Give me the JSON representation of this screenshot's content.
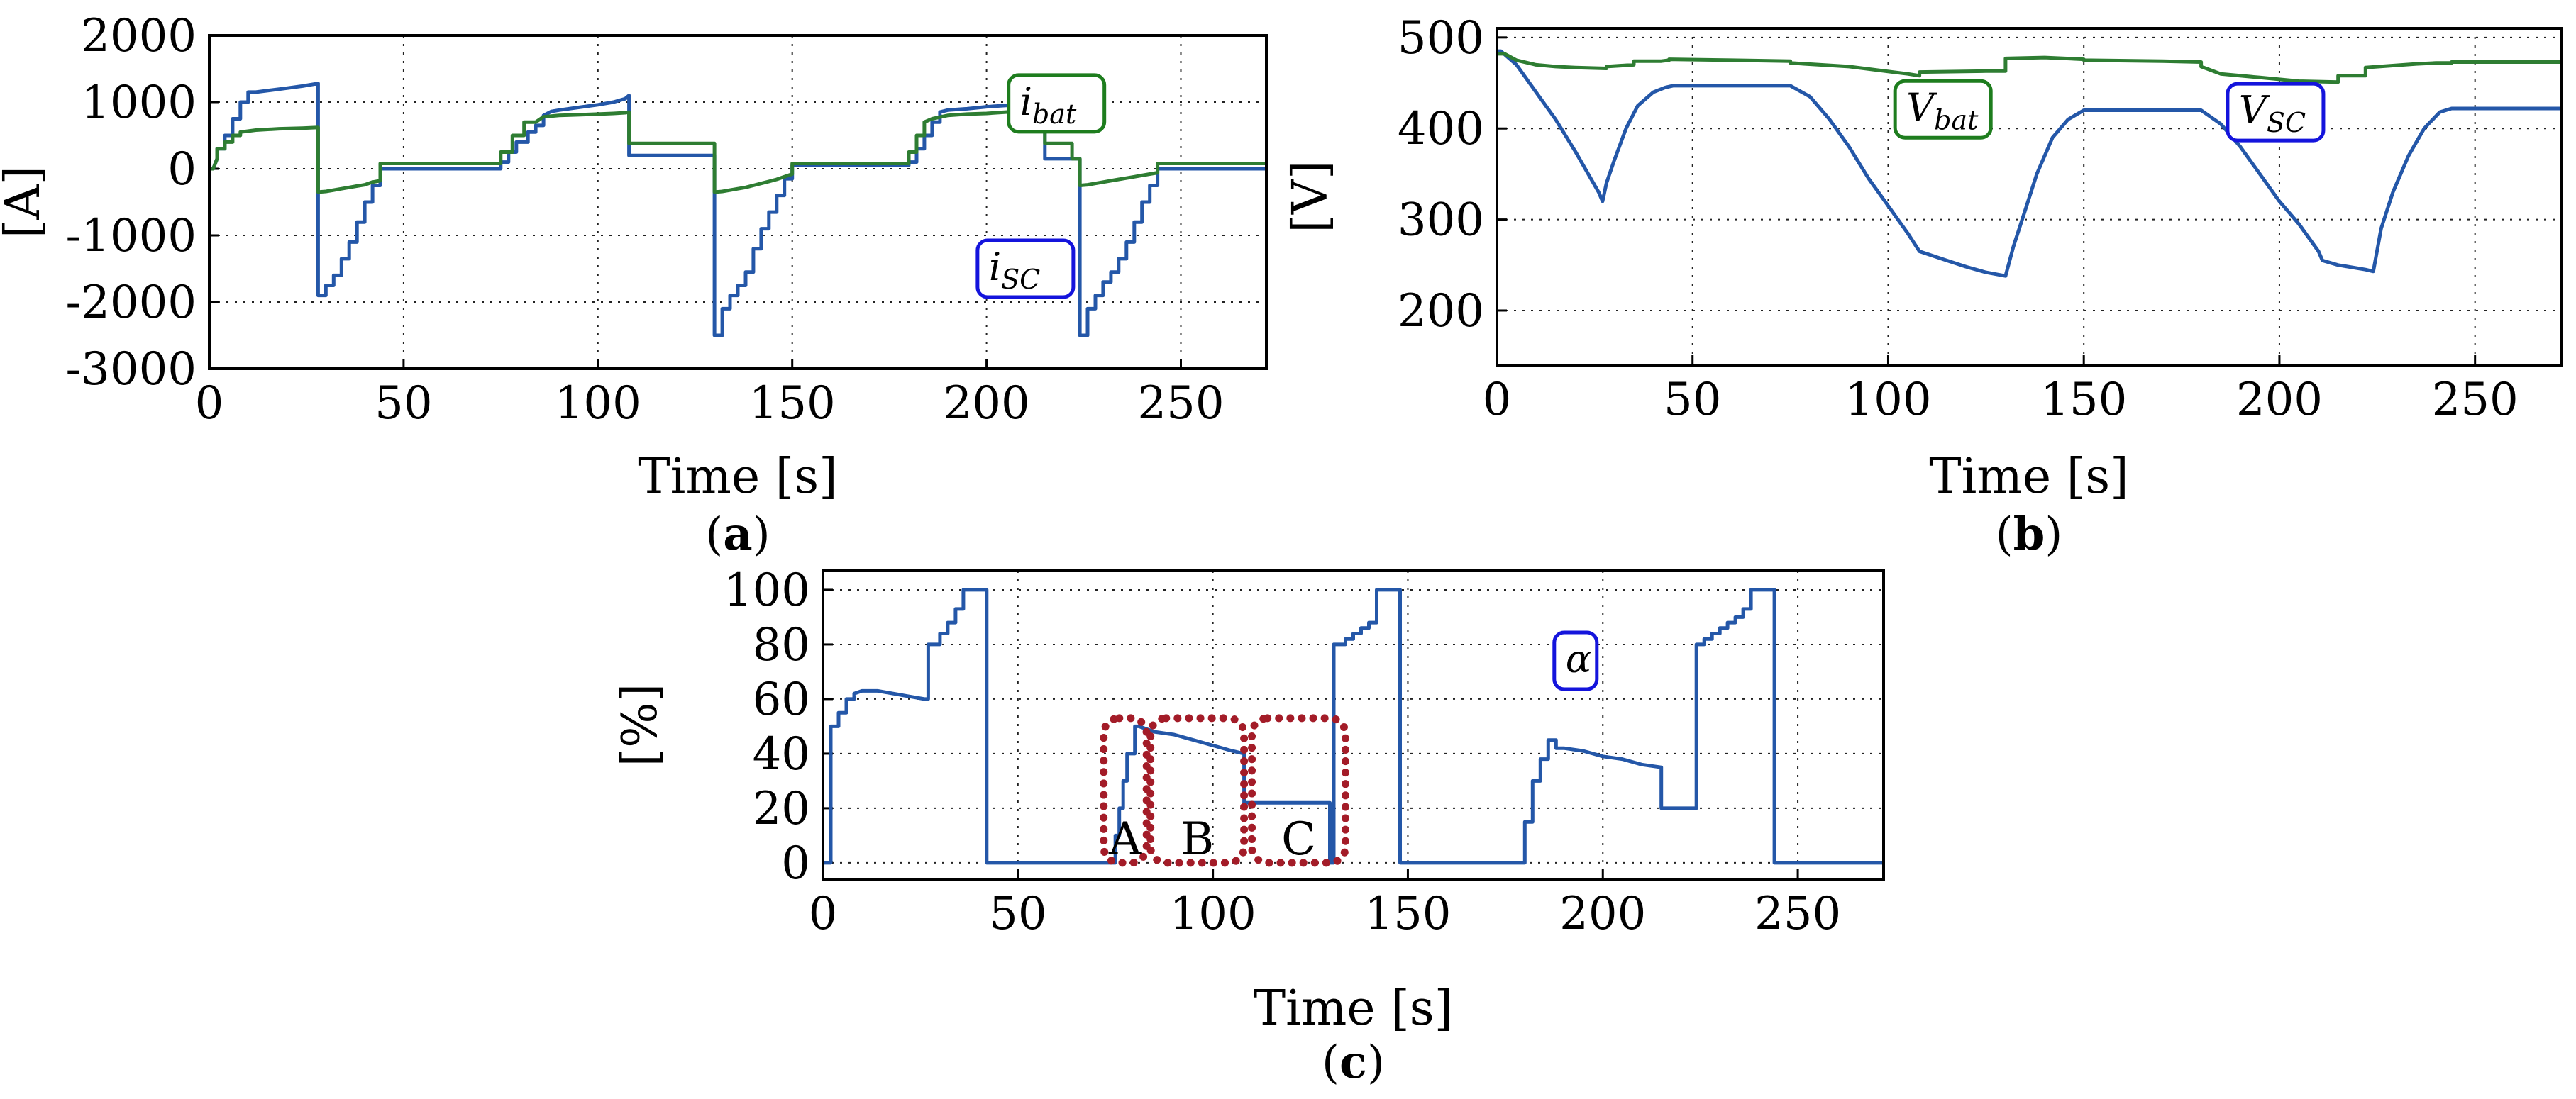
{
  "colors": {
    "blue": "#2457a8",
    "green": "#2e7d32",
    "blue_badge": "#1414dc",
    "green_badge": "#1e7d1e",
    "region": "#a31c28"
  },
  "chart_data": [
    {
      "id": "a",
      "type": "line",
      "panel_label": "(a)",
      "panel_letter": "a",
      "xlabel": "Time [s]",
      "ylabel": "[A]",
      "xlim": [
        0,
        272
      ],
      "ylim": [
        -3000,
        2000
      ],
      "xticks": [
        0,
        50,
        100,
        150,
        200,
        250
      ],
      "yticks": [
        2000,
        1000,
        0,
        -1000,
        -2000,
        -3000
      ],
      "grid": true,
      "series": [
        {
          "name": "i_SC",
          "color": "blue",
          "label_main": "i",
          "label_sub": "SC",
          "label_at": [
            210,
            -1500
          ],
          "x": [
            0,
            1,
            2,
            2,
            4,
            4,
            6,
            6,
            8,
            8,
            10,
            10,
            12,
            16,
            20,
            24,
            28,
            28,
            30,
            30,
            32,
            32,
            34,
            34,
            36,
            36,
            38,
            38,
            40,
            40,
            42,
            42,
            44,
            44,
            75,
            75,
            77,
            77,
            79,
            79,
            82,
            82,
            84,
            84,
            86,
            86,
            88,
            90,
            95,
            100,
            104,
            107,
            108,
            108,
            130,
            130,
            132,
            132,
            134,
            134,
            136,
            136,
            138,
            138,
            140,
            140,
            142,
            142,
            144,
            144,
            146,
            146,
            148,
            148,
            150,
            150,
            180,
            180,
            182,
            182,
            184,
            184,
            186,
            186,
            188,
            188,
            190,
            195,
            200,
            205,
            210,
            214,
            215,
            215,
            224,
            224,
            226,
            226,
            228,
            228,
            230,
            230,
            232,
            232,
            234,
            234,
            236,
            236,
            238,
            238,
            240,
            240,
            242,
            242,
            244,
            244,
            272
          ],
          "y": [
            0,
            0,
            150,
            300,
            300,
            500,
            500,
            750,
            750,
            1000,
            1000,
            1150,
            1150,
            1180,
            1210,
            1240,
            1280,
            -1900,
            -1900,
            -1750,
            -1750,
            -1600,
            -1600,
            -1350,
            -1350,
            -1100,
            -1100,
            -800,
            -800,
            -500,
            -500,
            -250,
            -250,
            0,
            0,
            100,
            100,
            250,
            250,
            400,
            400,
            550,
            550,
            650,
            650,
            800,
            860,
            880,
            920,
            960,
            1000,
            1050,
            1100,
            200,
            200,
            -2500,
            -2500,
            -2100,
            -2100,
            -1900,
            -1900,
            -1750,
            -1750,
            -1550,
            -1550,
            -1200,
            -1200,
            -900,
            -900,
            -650,
            -650,
            -400,
            -400,
            -150,
            -150,
            50,
            50,
            100,
            100,
            300,
            300,
            500,
            500,
            700,
            700,
            850,
            880,
            900,
            930,
            950,
            970,
            990,
            1000,
            150,
            150,
            -2500,
            -2500,
            -2100,
            -2100,
            -1900,
            -1900,
            -1700,
            -1700,
            -1550,
            -1550,
            -1350,
            -1350,
            -1100,
            -1100,
            -800,
            -800,
            -500,
            -500,
            -250,
            -250,
            0,
            0
          ]
        },
        {
          "name": "i_bat",
          "color": "green",
          "label_main": "i",
          "label_sub": "bat",
          "label_at": [
            218,
            980
          ],
          "x": [
            0,
            1,
            2,
            2,
            4,
            4,
            6,
            6,
            8,
            8,
            12,
            18,
            24,
            28,
            28,
            30,
            32,
            34,
            36,
            38,
            40,
            42,
            44,
            44,
            75,
            75,
            78,
            78,
            81,
            81,
            84,
            86,
            90,
            95,
            100,
            104,
            107,
            108,
            108,
            130,
            130,
            132,
            134,
            136,
            138,
            140,
            142,
            144,
            146,
            148,
            150,
            150,
            180,
            180,
            182,
            182,
            184,
            184,
            186,
            190,
            195,
            200,
            205,
            210,
            214,
            215,
            215,
            222,
            222,
            224,
            224,
            226,
            228,
            230,
            232,
            234,
            236,
            238,
            240,
            242,
            244,
            244,
            272
          ],
          "y": [
            0,
            0,
            150,
            300,
            300,
            400,
            400,
            500,
            500,
            550,
            580,
            600,
            610,
            620,
            -350,
            -340,
            -320,
            -300,
            -280,
            -260,
            -240,
            -200,
            -180,
            80,
            80,
            250,
            250,
            500,
            500,
            700,
            700,
            780,
            800,
            810,
            820,
            830,
            840,
            850,
            380,
            380,
            -350,
            -340,
            -320,
            -300,
            -280,
            -250,
            -220,
            -190,
            -160,
            -120,
            -80,
            80,
            80,
            250,
            250,
            500,
            500,
            700,
            750,
            800,
            820,
            830,
            850,
            870,
            880,
            900,
            380,
            380,
            150,
            150,
            -250,
            -240,
            -220,
            -200,
            -180,
            -160,
            -140,
            -120,
            -100,
            -80,
            -60,
            80,
            80
          ]
        }
      ]
    },
    {
      "id": "b",
      "type": "line",
      "panel_label": "(b)",
      "panel_letter": "b",
      "xlabel": "Time [s]",
      "ylabel": "[V]",
      "xlim": [
        0,
        272
      ],
      "ylim": [
        140,
        510
      ],
      "xticks": [
        0,
        50,
        100,
        150,
        200,
        250
      ],
      "yticks": [
        500,
        400,
        300,
        200
      ],
      "grid": true,
      "series": [
        {
          "name": "V_SC",
          "color": "blue",
          "label_main": "V",
          "label_sub": "SC",
          "label_at": [
            199,
            418
          ],
          "x": [
            0,
            1,
            5,
            10,
            15,
            20,
            26,
            27,
            28,
            30,
            33,
            36,
            40,
            43,
            45,
            75,
            80,
            85,
            90,
            95,
            100,
            105,
            108,
            115,
            120,
            125,
            130,
            132,
            135,
            138,
            142,
            146,
            150,
            180,
            185,
            190,
            195,
            200,
            205,
            210,
            211,
            215,
            222,
            224,
            226,
            229,
            233,
            237,
            241,
            244,
            272
          ],
          "y": [
            485,
            485,
            470,
            440,
            410,
            375,
            330,
            320,
            340,
            365,
            400,
            425,
            440,
            445,
            447,
            447,
            435,
            410,
            380,
            345,
            315,
            285,
            265,
            255,
            248,
            242,
            238,
            270,
            310,
            350,
            390,
            410,
            420,
            420,
            405,
            380,
            350,
            320,
            295,
            265,
            255,
            250,
            245,
            243,
            290,
            330,
            370,
            400,
            418,
            422,
            422
          ]
        },
        {
          "name": "V_bat",
          "color": "green",
          "label_main": "V",
          "label_sub": "bat",
          "label_at": [
            114,
            421
          ],
          "x": [
            0,
            2,
            5,
            10,
            15,
            20,
            28,
            28,
            35,
            35,
            42,
            44,
            44,
            60,
            75,
            75,
            90,
            105,
            108,
            108,
            125,
            130,
            130,
            140,
            150,
            150,
            170,
            180,
            180,
            185,
            195,
            205,
            215,
            215,
            222,
            222,
            235,
            240,
            244,
            244,
            272
          ],
          "y": [
            482,
            482,
            475,
            470,
            468,
            467,
            466,
            468,
            470,
            474,
            474,
            475,
            476,
            475,
            474,
            472,
            468,
            460,
            458,
            462,
            463,
            463,
            477,
            478,
            476,
            475,
            474,
            473,
            468,
            460,
            456,
            452,
            451,
            458,
            458,
            467,
            471,
            472,
            472,
            473,
            473
          ]
        }
      ]
    },
    {
      "id": "c",
      "type": "line",
      "panel_label": "(c)",
      "panel_letter": "c",
      "xlabel": "Time [s]",
      "ylabel": "[%]",
      "xlim": [
        0,
        272
      ],
      "ylim": [
        -6,
        107
      ],
      "xticks": [
        0,
        50,
        100,
        150,
        200,
        250
      ],
      "yticks": [
        100,
        80,
        60,
        40,
        20,
        0
      ],
      "grid": true,
      "regions": [
        {
          "label": "A",
          "x": [
            72,
            83
          ],
          "y": [
            0,
            53
          ]
        },
        {
          "label": "B",
          "x": [
            84,
            108
          ],
          "y": [
            0,
            53
          ]
        },
        {
          "label": "C",
          "x": [
            110,
            134
          ],
          "y": [
            0,
            53
          ]
        }
      ],
      "series": [
        {
          "name": "alpha",
          "color": "blue",
          "label_main": "α",
          "label_sub": "",
          "label_at": [
            193,
            74
          ],
          "x": [
            0,
            2,
            2,
            4,
            4,
            6,
            6,
            8,
            8,
            10,
            14,
            18,
            22,
            26,
            27,
            27,
            30,
            30,
            32,
            32,
            34,
            34,
            36,
            36,
            42,
            42,
            44,
            44,
            75,
            75,
            76,
            76,
            77,
            77,
            78,
            78,
            80,
            80,
            81,
            85,
            90,
            95,
            100,
            105,
            108,
            108,
            130,
            130,
            131,
            131,
            134,
            134,
            136,
            136,
            138,
            138,
            140,
            140,
            142,
            142,
            148,
            148,
            150,
            150,
            180,
            180,
            182,
            182,
            184,
            184,
            186,
            186,
            188,
            188,
            190,
            195,
            200,
            205,
            210,
            215,
            215,
            224,
            224,
            226,
            226,
            228,
            228,
            230,
            230,
            232,
            232,
            234,
            234,
            236,
            236,
            238,
            238,
            244,
            244,
            272
          ],
          "y": [
            0,
            0,
            50,
            50,
            55,
            55,
            60,
            60,
            62,
            63,
            63,
            62,
            61,
            60,
            60,
            80,
            80,
            84,
            84,
            88,
            88,
            93,
            93,
            100,
            100,
            0,
            0,
            0,
            0,
            10,
            10,
            20,
            20,
            30,
            30,
            40,
            40,
            50,
            50,
            48,
            47,
            45,
            43,
            41,
            40,
            22,
            22,
            0,
            0,
            80,
            80,
            82,
            82,
            84,
            84,
            86,
            86,
            88,
            88,
            100,
            100,
            0,
            0,
            0,
            0,
            15,
            15,
            30,
            30,
            38,
            38,
            45,
            45,
            42,
            42,
            41,
            39,
            38,
            36,
            35,
            20,
            20,
            80,
            80,
            82,
            82,
            84,
            84,
            86,
            86,
            88,
            88,
            90,
            90,
            93,
            93,
            100,
            100,
            0,
            0
          ]
        }
      ]
    }
  ]
}
